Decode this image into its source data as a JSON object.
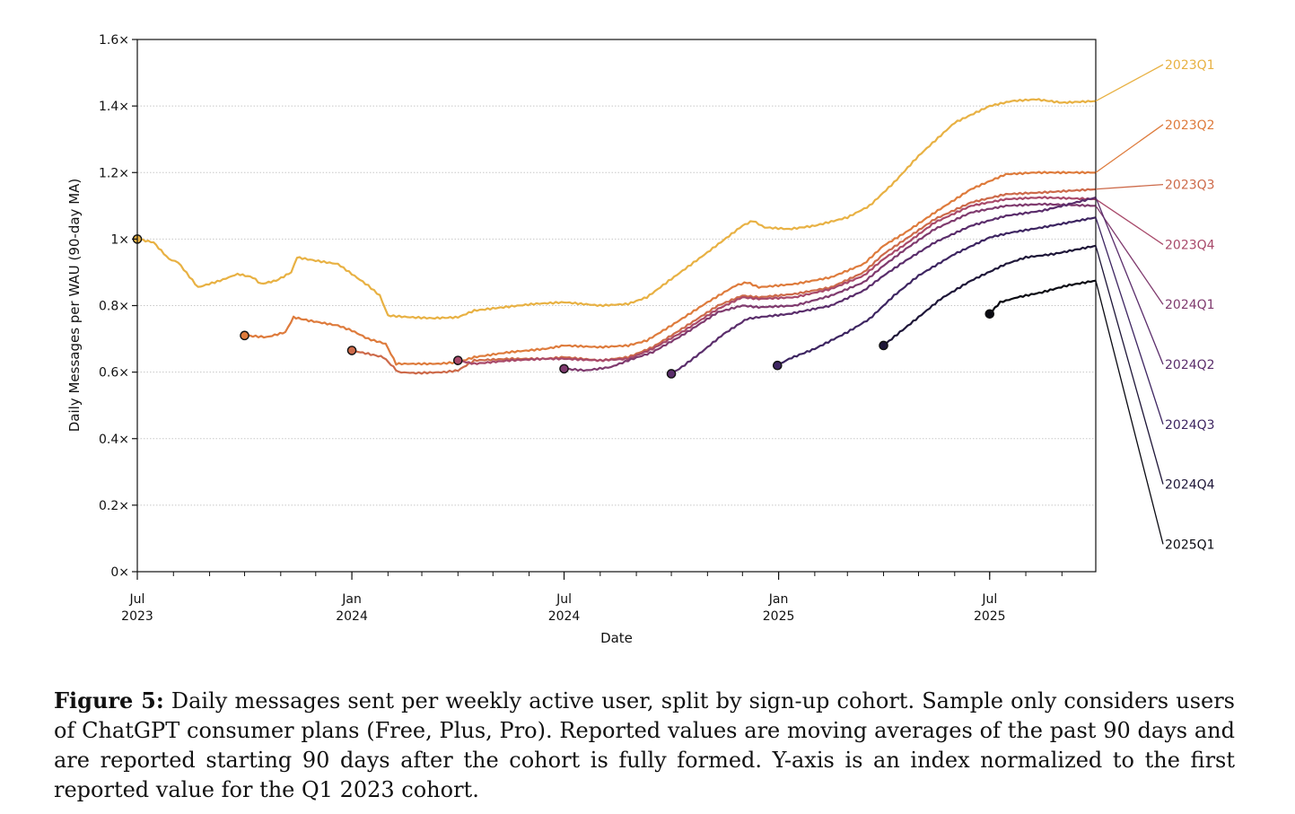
{
  "chart_data": {
    "type": "line",
    "title": "",
    "xlabel": "Date",
    "ylabel": "Daily Messages per WAU (90-day MA)",
    "ylim": [
      0,
      1.6
    ],
    "xlim": [
      "2023-07-01",
      "2025-09-30"
    ],
    "grid": "horizontal dotted",
    "x_ticks": [
      {
        "date": "2023-07-01",
        "line1": "Jul",
        "line2": "2023"
      },
      {
        "date": "2024-01-01",
        "line1": "Jan",
        "line2": "2024"
      },
      {
        "date": "2024-07-01",
        "line1": "Jul",
        "line2": "2024"
      },
      {
        "date": "2025-01-01",
        "line1": "Jan",
        "line2": "2025"
      },
      {
        "date": "2025-07-01",
        "line1": "Jul",
        "line2": "2025"
      }
    ],
    "y_ticks": [
      {
        "value": 0,
        "label": "0×"
      },
      {
        "value": 0.2,
        "label": "0.2×"
      },
      {
        "value": 0.4,
        "label": "0.4×"
      },
      {
        "value": 0.6,
        "label": "0.6×"
      },
      {
        "value": 0.8,
        "label": "0.8×"
      },
      {
        "value": 1.0,
        "label": "1×"
      },
      {
        "value": 1.2,
        "label": "1.2×"
      },
      {
        "value": 1.4,
        "label": "1.4×"
      },
      {
        "value": 1.6,
        "label": "1.6×"
      }
    ],
    "series": [
      {
        "name": "2023Q1",
        "color": "#e8b143",
        "start": [
          "2023-07-01",
          1.0
        ],
        "points": [
          [
            "2023-07-01",
            1.0
          ],
          [
            "2023-07-15",
            0.99
          ],
          [
            "2023-07-28",
            0.94
          ],
          [
            "2023-08-05",
            0.93
          ],
          [
            "2023-08-22",
            0.855
          ],
          [
            "2023-09-10",
            0.875
          ],
          [
            "2023-09-25",
            0.895
          ],
          [
            "2023-10-08",
            0.885
          ],
          [
            "2023-10-15",
            0.865
          ],
          [
            "2023-10-28",
            0.875
          ],
          [
            "2023-11-10",
            0.9
          ],
          [
            "2023-11-15",
            0.945
          ],
          [
            "2023-12-01",
            0.935
          ],
          [
            "2023-12-20",
            0.925
          ],
          [
            "2024-01-01",
            0.895
          ],
          [
            "2024-01-15",
            0.86
          ],
          [
            "2024-01-25",
            0.83
          ],
          [
            "2024-02-01",
            0.77
          ],
          [
            "2024-02-20",
            0.765
          ],
          [
            "2024-03-10",
            0.762
          ],
          [
            "2024-04-01",
            0.765
          ],
          [
            "2024-04-15",
            0.785
          ],
          [
            "2024-05-10",
            0.795
          ],
          [
            "2024-06-05",
            0.805
          ],
          [
            "2024-07-01",
            0.81
          ],
          [
            "2024-08-01",
            0.8
          ],
          [
            "2024-08-25",
            0.805
          ],
          [
            "2024-09-10",
            0.825
          ],
          [
            "2024-10-01",
            0.88
          ],
          [
            "2024-11-01",
            0.96
          ],
          [
            "2024-12-01",
            1.04
          ],
          [
            "2024-12-10",
            1.055
          ],
          [
            "2024-12-20",
            1.035
          ],
          [
            "2025-01-10",
            1.03
          ],
          [
            "2025-02-01",
            1.04
          ],
          [
            "2025-03-01",
            1.065
          ],
          [
            "2025-03-20",
            1.1
          ],
          [
            "2025-04-10",
            1.17
          ],
          [
            "2025-05-01",
            1.25
          ],
          [
            "2025-06-01",
            1.35
          ],
          [
            "2025-07-01",
            1.4
          ],
          [
            "2025-07-20",
            1.415
          ],
          [
            "2025-08-10",
            1.42
          ],
          [
            "2025-09-01",
            1.41
          ],
          [
            "2025-09-30",
            1.415
          ]
        ]
      },
      {
        "name": "2023Q2",
        "color": "#de7b3c",
        "start": [
          "2023-10-01",
          0.71
        ],
        "points": [
          [
            "2023-10-01",
            0.71
          ],
          [
            "2023-10-20",
            0.705
          ],
          [
            "2023-11-05",
            0.72
          ],
          [
            "2023-11-12",
            0.765
          ],
          [
            "2023-11-25",
            0.755
          ],
          [
            "2023-12-20",
            0.74
          ],
          [
            "2024-01-01",
            0.725
          ],
          [
            "2024-01-15",
            0.7
          ],
          [
            "2024-01-30",
            0.685
          ],
          [
            "2024-02-08",
            0.625
          ],
          [
            "2024-02-25",
            0.625
          ],
          [
            "2024-03-15",
            0.625
          ],
          [
            "2024-04-01",
            0.63
          ],
          [
            "2024-04-15",
            0.645
          ],
          [
            "2024-05-15",
            0.66
          ],
          [
            "2024-06-15",
            0.67
          ],
          [
            "2024-07-01",
            0.68
          ],
          [
            "2024-08-01",
            0.675
          ],
          [
            "2024-08-25",
            0.68
          ],
          [
            "2024-09-10",
            0.695
          ],
          [
            "2024-10-01",
            0.74
          ],
          [
            "2024-11-01",
            0.81
          ],
          [
            "2024-11-25",
            0.86
          ],
          [
            "2024-12-05",
            0.87
          ],
          [
            "2024-12-15",
            0.855
          ],
          [
            "2025-01-15",
            0.865
          ],
          [
            "2025-02-15",
            0.885
          ],
          [
            "2025-03-15",
            0.925
          ],
          [
            "2025-04-01",
            0.98
          ],
          [
            "2025-04-20",
            1.02
          ],
          [
            "2025-05-15",
            1.08
          ],
          [
            "2025-06-15",
            1.15
          ],
          [
            "2025-07-15",
            1.195
          ],
          [
            "2025-08-10",
            1.2
          ],
          [
            "2025-09-30",
            1.2
          ]
        ]
      },
      {
        "name": "2023Q3",
        "color": "#cd6a4a",
        "start": [
          "2024-01-01",
          0.665
        ],
        "points": [
          [
            "2024-01-01",
            0.665
          ],
          [
            "2024-01-15",
            0.655
          ],
          [
            "2024-01-28",
            0.645
          ],
          [
            "2024-02-10",
            0.6
          ],
          [
            "2024-02-25",
            0.597
          ],
          [
            "2024-03-20",
            0.6
          ],
          [
            "2024-04-01",
            0.605
          ],
          [
            "2024-04-15",
            0.635
          ],
          [
            "2024-05-15",
            0.64
          ],
          [
            "2024-06-15",
            0.64
          ],
          [
            "2024-07-01",
            0.645
          ],
          [
            "2024-08-01",
            0.635
          ],
          [
            "2024-08-25",
            0.645
          ],
          [
            "2024-09-15",
            0.675
          ],
          [
            "2024-10-10",
            0.73
          ],
          [
            "2024-11-10",
            0.8
          ],
          [
            "2024-12-01",
            0.83
          ],
          [
            "2024-12-15",
            0.825
          ],
          [
            "2025-01-15",
            0.835
          ],
          [
            "2025-02-15",
            0.855
          ],
          [
            "2025-03-15",
            0.9
          ],
          [
            "2025-04-01",
            0.955
          ],
          [
            "2025-04-20",
            1.0
          ],
          [
            "2025-05-15",
            1.06
          ],
          [
            "2025-06-15",
            1.11
          ],
          [
            "2025-07-15",
            1.135
          ],
          [
            "2025-08-15",
            1.14
          ],
          [
            "2025-09-30",
            1.15
          ]
        ]
      },
      {
        "name": "2023Q4",
        "color": "#a8496a",
        "start": [
          "2024-04-01",
          0.635
        ],
        "points": [
          [
            "2024-04-01",
            0.635
          ],
          [
            "2024-04-15",
            0.625
          ],
          [
            "2024-05-15",
            0.635
          ],
          [
            "2024-06-15",
            0.64
          ],
          [
            "2024-07-01",
            0.64
          ],
          [
            "2024-08-01",
            0.635
          ],
          [
            "2024-08-25",
            0.64
          ],
          [
            "2024-09-15",
            0.67
          ],
          [
            "2024-10-10",
            0.72
          ],
          [
            "2024-11-10",
            0.79
          ],
          [
            "2024-12-01",
            0.825
          ],
          [
            "2024-12-15",
            0.82
          ],
          [
            "2025-01-15",
            0.825
          ],
          [
            "2025-02-15",
            0.85
          ],
          [
            "2025-03-15",
            0.89
          ],
          [
            "2025-04-01",
            0.94
          ],
          [
            "2025-04-20",
            0.985
          ],
          [
            "2025-05-15",
            1.05
          ],
          [
            "2025-06-15",
            1.1
          ],
          [
            "2025-07-15",
            1.12
          ],
          [
            "2025-08-15",
            1.125
          ],
          [
            "2025-09-30",
            1.12
          ]
        ]
      },
      {
        "name": "2024Q1",
        "color": "#7f3a6e",
        "start": [
          "2024-07-01",
          0.61
        ],
        "points": [
          [
            "2024-07-01",
            0.61
          ],
          [
            "2024-07-20",
            0.605
          ],
          [
            "2024-08-10",
            0.615
          ],
          [
            "2024-08-25",
            0.635
          ],
          [
            "2024-09-15",
            0.66
          ],
          [
            "2024-10-10",
            0.71
          ],
          [
            "2024-11-10",
            0.78
          ],
          [
            "2024-12-01",
            0.8
          ],
          [
            "2024-12-15",
            0.795
          ],
          [
            "2025-01-15",
            0.8
          ],
          [
            "2025-02-15",
            0.83
          ],
          [
            "2025-03-15",
            0.87
          ],
          [
            "2025-04-01",
            0.92
          ],
          [
            "2025-04-20",
            0.97
          ],
          [
            "2025-05-15",
            1.03
          ],
          [
            "2025-06-15",
            1.08
          ],
          [
            "2025-07-15",
            1.1
          ],
          [
            "2025-08-15",
            1.105
          ],
          [
            "2025-09-30",
            1.1
          ]
        ]
      },
      {
        "name": "2024Q2",
        "color": "#5a2d6b",
        "start": [
          "2024-10-01",
          0.595
        ],
        "points": [
          [
            "2024-10-01",
            0.595
          ],
          [
            "2024-10-10",
            0.615
          ],
          [
            "2024-10-25",
            0.655
          ],
          [
            "2024-11-15",
            0.715
          ],
          [
            "2024-12-05",
            0.76
          ],
          [
            "2024-12-15",
            0.765
          ],
          [
            "2025-01-10",
            0.775
          ],
          [
            "2025-02-15",
            0.8
          ],
          [
            "2025-03-15",
            0.845
          ],
          [
            "2025-04-01",
            0.89
          ],
          [
            "2025-04-20",
            0.935
          ],
          [
            "2025-05-15",
            0.99
          ],
          [
            "2025-06-15",
            1.04
          ],
          [
            "2025-07-15",
            1.07
          ],
          [
            "2025-08-15",
            1.085
          ],
          [
            "2025-09-30",
            1.125
          ]
        ]
      },
      {
        "name": "2024Q3",
        "color": "#3d2561",
        "start": [
          "2024-12-31",
          0.62
        ],
        "points": [
          [
            "2024-12-31",
            0.62
          ],
          [
            "2025-01-10",
            0.64
          ],
          [
            "2025-02-01",
            0.67
          ],
          [
            "2025-03-01",
            0.72
          ],
          [
            "2025-03-20",
            0.76
          ],
          [
            "2025-04-10",
            0.83
          ],
          [
            "2025-05-01",
            0.89
          ],
          [
            "2025-06-01",
            0.955
          ],
          [
            "2025-07-01",
            1.005
          ],
          [
            "2025-07-20",
            1.02
          ],
          [
            "2025-08-15",
            1.035
          ],
          [
            "2025-09-30",
            1.065
          ]
        ]
      },
      {
        "name": "2024Q4",
        "color": "#1e1638",
        "start": [
          "2025-04-01",
          0.68
        ],
        "points": [
          [
            "2025-04-01",
            0.68
          ],
          [
            "2025-04-15",
            0.72
          ],
          [
            "2025-05-01",
            0.765
          ],
          [
            "2025-05-20",
            0.82
          ],
          [
            "2025-06-15",
            0.875
          ],
          [
            "2025-07-15",
            0.925
          ],
          [
            "2025-08-01",
            0.945
          ],
          [
            "2025-08-25",
            0.955
          ],
          [
            "2025-09-30",
            0.98
          ]
        ]
      },
      {
        "name": "2025Q1",
        "color": "#0a0a12",
        "start": [
          "2025-07-01",
          0.775
        ],
        "points": [
          [
            "2025-07-01",
            0.775
          ],
          [
            "2025-07-10",
            0.81
          ],
          [
            "2025-07-25",
            0.825
          ],
          [
            "2025-08-15",
            0.84
          ],
          [
            "2025-09-05",
            0.86
          ],
          [
            "2025-09-30",
            0.875
          ]
        ]
      }
    ]
  },
  "caption": {
    "label": "Figure 5:",
    "text": " Daily messages sent per weekly active user, split by sign-up cohort. Sample only considers users of ChatGPT consumer plans (Free, Plus, Pro). Reported values are moving averages of the past 90 days and are reported starting 90 days after the cohort is fully formed. Y-axis is an index normalized to the first reported value for the Q1 2023 cohort."
  }
}
